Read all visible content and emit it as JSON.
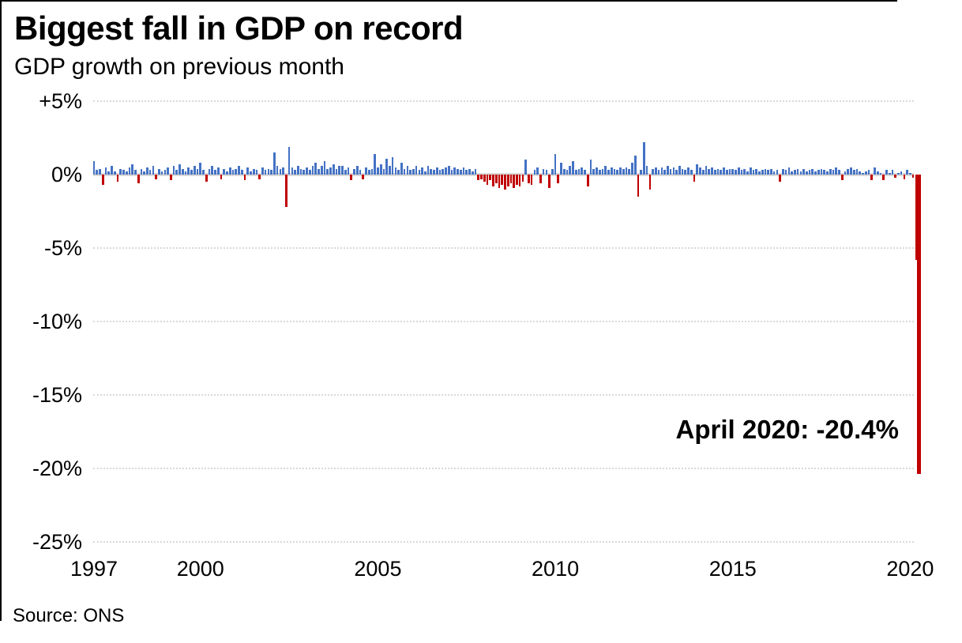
{
  "header": {
    "title": "Biggest fall in GDP on record",
    "subtitle": "GDP growth on previous month"
  },
  "annotation": "April 2020: -20.4%",
  "source": "Source: ONS",
  "colors": {
    "positive_bar": "#4472c4",
    "negative_bar": "#c00000",
    "gridline": "#d9d9d9",
    "zero_line": "#d9d9d9",
    "text": "#000000",
    "background": "#ffffff"
  },
  "chart_data": {
    "type": "bar",
    "title": "Biggest fall in GDP on record",
    "subtitle": "GDP growth on previous month",
    "source": "Source: ONS",
    "unit": "%",
    "x_start": "1997-01",
    "x_end": "2020-04",
    "ylim": [
      -25,
      5
    ],
    "grid": "horizontal-dotted",
    "legend": "none",
    "y_ticks": [
      {
        "value": 5,
        "label": "+5%"
      },
      {
        "value": 0,
        "label": "0%"
      },
      {
        "value": -5,
        "label": "-5%"
      },
      {
        "value": -10,
        "label": "-10%"
      },
      {
        "value": -15,
        "label": "-15%"
      },
      {
        "value": -20,
        "label": "-20%"
      },
      {
        "value": -25,
        "label": "-25%"
      }
    ],
    "x_ticks": [
      {
        "year": 1997,
        "label": "1997"
      },
      {
        "year": 2000,
        "label": "2000"
      },
      {
        "year": 2005,
        "label": "2005"
      },
      {
        "year": 2010,
        "label": "2010"
      },
      {
        "year": 2015,
        "label": "2015"
      },
      {
        "year": 2020,
        "label": "2020"
      }
    ],
    "annotation": {
      "text": "April 2020: -20.4%",
      "month": "2020-04",
      "value": -20.4
    },
    "notable_points": [
      {
        "month": "2002-06",
        "value": -2.2
      },
      {
        "month": "2002-07",
        "value": 1.9
      },
      {
        "month": "2012-07",
        "value": 2.2
      },
      {
        "month": "2020-03",
        "value": -5.8
      },
      {
        "month": "2020-04",
        "value": -20.4
      }
    ],
    "series": [
      {
        "name": "Monthly GDP growth (%)",
        "start": "1997-01",
        "values": [
          0.9,
          0.3,
          0.4,
          -0.7,
          0.5,
          0.2,
          0.6,
          0.2,
          -0.5,
          0.4,
          0.3,
          0.2,
          0.5,
          0.7,
          0.3,
          -0.6,
          0.4,
          0.2,
          0.5,
          0.3,
          0.6,
          -0.3,
          0.4,
          0.2,
          0.3,
          0.5,
          -0.4,
          0.6,
          0.3,
          0.7,
          0.4,
          0.2,
          0.5,
          0.3,
          0.6,
          0.4,
          0.8,
          0.3,
          -0.5,
          0.4,
          0.6,
          0.3,
          0.5,
          -0.3,
          0.4,
          0.2,
          0.5,
          0.3,
          0.4,
          0.6,
          0.3,
          -0.4,
          0.5,
          0.2,
          0.4,
          0.3,
          -0.3,
          0.5,
          0.3,
          0.4,
          0.3,
          1.5,
          0.6,
          0.4,
          0.5,
          -2.2,
          1.9,
          0.5,
          0.3,
          0.6,
          0.4,
          0.3,
          0.5,
          0.3,
          0.6,
          0.8,
          0.4,
          0.6,
          0.9,
          0.4,
          0.5,
          0.7,
          0.4,
          0.6,
          0.6,
          0.3,
          0.5,
          -0.4,
          0.4,
          0.6,
          0.3,
          -0.3,
          0.5,
          0.3,
          0.4,
          1.4,
          0.5,
          0.7,
          0.4,
          1.1,
          0.6,
          1.2,
          0.5,
          0.3,
          0.8,
          0.4,
          0.6,
          0.3,
          0.4,
          0.6,
          0.3,
          0.5,
          0.2,
          0.6,
          0.4,
          0.3,
          0.5,
          0.3,
          0.4,
          0.5,
          0.6,
          0.3,
          0.5,
          0.4,
          0.3,
          0.5,
          0.3,
          0.4,
          0.2,
          0.4,
          -0.4,
          -0.3,
          -0.5,
          -0.7,
          -0.4,
          -0.8,
          -0.6,
          -0.9,
          -0.7,
          -1.0,
          -0.8,
          -0.6,
          -0.9,
          -0.7,
          -0.8,
          -0.5,
          1.0,
          -0.6,
          -0.7,
          0.3,
          0.5,
          -0.6,
          0.4,
          0.3,
          -0.9,
          0.4,
          1.4,
          -0.6,
          0.8,
          0.4,
          0.3,
          0.6,
          0.9,
          0.3,
          0.4,
          0.5,
          0.3,
          -0.8,
          1.0,
          0.4,
          0.5,
          0.3,
          0.4,
          0.6,
          0.3,
          0.5,
          0.4,
          0.3,
          0.5,
          0.4,
          0.5,
          0.4,
          0.8,
          1.3,
          -1.5,
          0.3,
          2.2,
          0.6,
          -1.0,
          0.4,
          0.5,
          0.3,
          0.5,
          0.3,
          0.6,
          0.4,
          0.5,
          0.3,
          0.6,
          0.4,
          0.3,
          0.5,
          0.3,
          -0.5,
          0.7,
          0.5,
          0.3,
          0.6,
          0.4,
          0.5,
          0.3,
          0.4,
          0.3,
          0.5,
          0.3,
          0.4,
          0.4,
          0.3,
          0.5,
          0.3,
          0.4,
          0.2,
          0.5,
          0.3,
          0.4,
          0.2,
          0.3,
          0.4,
          0.3,
          0.4,
          0.2,
          0.3,
          -0.5,
          0.4,
          0.3,
          0.5,
          0.2,
          0.3,
          0.4,
          0.2,
          0.4,
          0.2,
          0.3,
          0.4,
          0.2,
          0.3,
          0.4,
          0.3,
          0.2,
          0.4,
          0.3,
          0.5,
          0.3,
          -0.4,
          0.2,
          0.4,
          0.5,
          0.3,
          0.4,
          0.2,
          0.1,
          0.2,
          0.3,
          -0.4,
          0.5,
          0.2,
          0.1,
          -0.4,
          0.3,
          0.1,
          0.3,
          -0.2,
          0.1,
          0.2,
          -0.3,
          0.3,
          0.1,
          -0.2,
          -5.8,
          -20.4
        ]
      }
    ]
  }
}
